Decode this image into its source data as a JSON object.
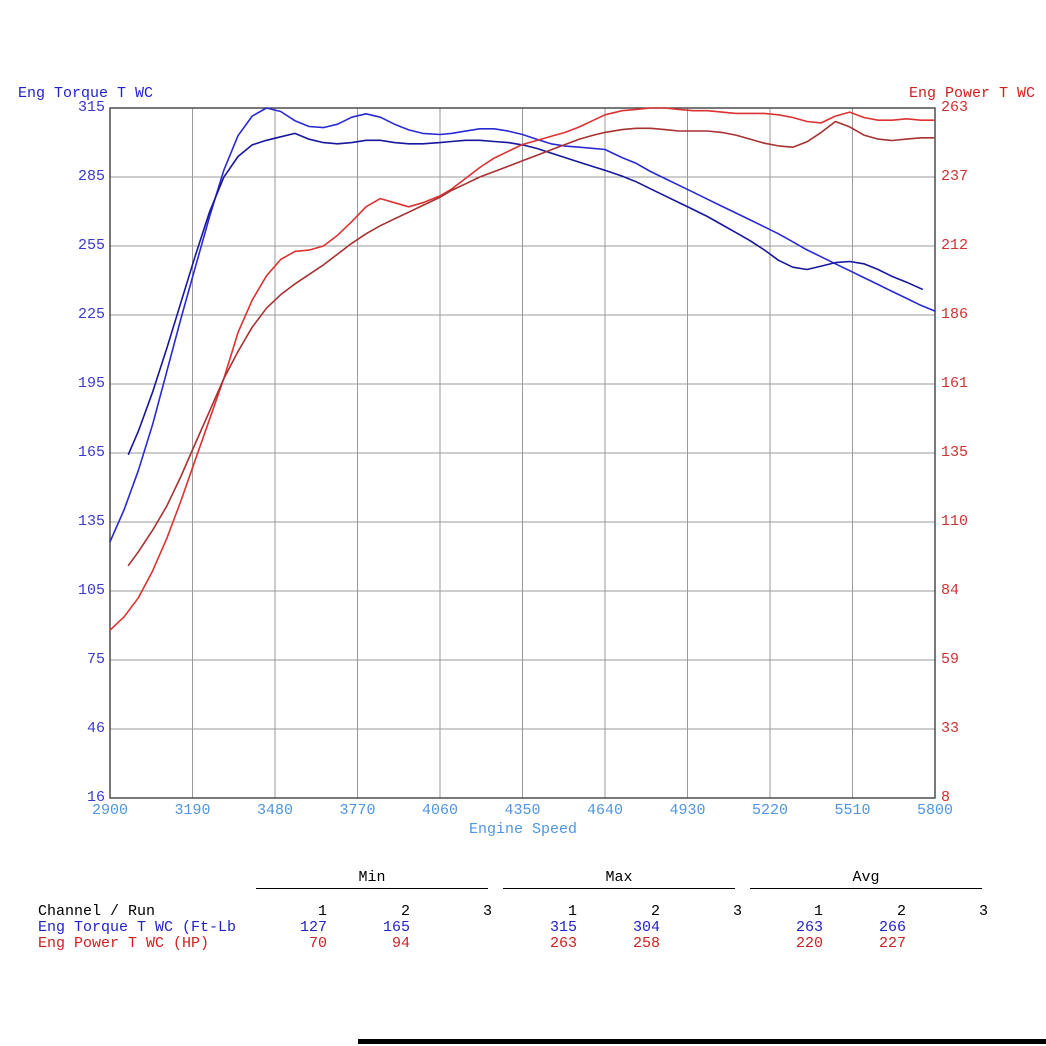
{
  "chart": {
    "torque_title": "Eng Torque T WC",
    "power_title": "Eng Power T WC",
    "x_title": "Engine Speed"
  },
  "colors": {
    "torque_run1": "#2a2ad2",
    "torque_run2": "#17179c",
    "power_run1": "#dc3232",
    "power_run2": "#a63232",
    "left_axis_text": "#3a3acc",
    "right_axis_text": "#cc3333",
    "x_axis_text": "#4f95e0",
    "grid": "#9a9a9a",
    "plot_border": "#404040",
    "table_header_text": "#000000",
    "table_torque_text": "#2222cc",
    "table_power_text": "#cc2222",
    "divider": "#000000",
    "background": "#ffffff"
  },
  "chart_data": {
    "type": "line",
    "title": "",
    "xlabel": "Engine Speed",
    "x_range": [
      2900,
      5800
    ],
    "x_ticks": [
      "2900",
      "3190",
      "3480",
      "3770",
      "4060",
      "4350",
      "4640",
      "4930",
      "5220",
      "5510",
      "5800"
    ],
    "torque_axis": {
      "title": "Eng Torque T WC",
      "range": [
        16,
        315
      ],
      "ticks": [
        "315",
        "285",
        "255",
        "225",
        "195",
        "165",
        "135",
        "105",
        "75",
        "46",
        "16"
      ]
    },
    "power_axis": {
      "title": "Eng Power T WC",
      "range": [
        8,
        263
      ],
      "ticks": [
        "263",
        "237",
        "212",
        "186",
        "161",
        "135",
        "110",
        "84",
        "59",
        "33",
        "8"
      ]
    },
    "grid": true,
    "series": [
      {
        "name": "Eng Torque T WC run 1",
        "axis": "torque",
        "color_key": "torque_run1",
        "points": [
          [
            2900,
            127
          ],
          [
            2950,
            141
          ],
          [
            3000,
            158
          ],
          [
            3050,
            178
          ],
          [
            3100,
            201
          ],
          [
            3150,
            224
          ],
          [
            3200,
            246
          ],
          [
            3250,
            268
          ],
          [
            3300,
            288
          ],
          [
            3350,
            303
          ],
          [
            3400,
            311.5
          ],
          [
            3450,
            315
          ],
          [
            3500,
            313.5
          ],
          [
            3550,
            309.5
          ],
          [
            3600,
            307
          ],
          [
            3650,
            306.5
          ],
          [
            3700,
            308
          ],
          [
            3750,
            311
          ],
          [
            3800,
            312.5
          ],
          [
            3850,
            311
          ],
          [
            3900,
            308
          ],
          [
            3950,
            305.5
          ],
          [
            4000,
            304
          ],
          [
            4060,
            303.5
          ],
          [
            4100,
            304
          ],
          [
            4150,
            305
          ],
          [
            4200,
            306
          ],
          [
            4250,
            306
          ],
          [
            4300,
            305
          ],
          [
            4350,
            303.5
          ],
          [
            4400,
            301.5
          ],
          [
            4450,
            299.5
          ],
          [
            4500,
            298.5
          ],
          [
            4550,
            298
          ],
          [
            4600,
            297.5
          ],
          [
            4640,
            297
          ],
          [
            4700,
            293.5
          ],
          [
            4750,
            291
          ],
          [
            4800,
            287.5
          ],
          [
            4850,
            284.5
          ],
          [
            4900,
            281.5
          ],
          [
            4950,
            278.5
          ],
          [
            5000,
            275.5
          ],
          [
            5050,
            272.5
          ],
          [
            5100,
            269.5
          ],
          [
            5150,
            266.5
          ],
          [
            5200,
            263.5
          ],
          [
            5250,
            260.5
          ],
          [
            5300,
            257
          ],
          [
            5350,
            253.5
          ],
          [
            5400,
            250.5
          ],
          [
            5450,
            247.5
          ],
          [
            5500,
            244.5
          ],
          [
            5550,
            241.5
          ],
          [
            5600,
            238.5
          ],
          [
            5650,
            235.5
          ],
          [
            5700,
            232.5
          ],
          [
            5750,
            229.5
          ],
          [
            5800,
            227
          ]
        ]
      },
      {
        "name": "Eng Torque T WC run 2",
        "axis": "torque",
        "color_key": "torque_run2",
        "points": [
          [
            2965,
            165
          ],
          [
            3000,
            175
          ],
          [
            3050,
            192
          ],
          [
            3100,
            211
          ],
          [
            3150,
            231
          ],
          [
            3200,
            251
          ],
          [
            3250,
            270
          ],
          [
            3300,
            285
          ],
          [
            3350,
            294
          ],
          [
            3400,
            299
          ],
          [
            3450,
            301
          ],
          [
            3500,
            302.5
          ],
          [
            3550,
            304
          ],
          [
            3600,
            301.5
          ],
          [
            3650,
            300
          ],
          [
            3700,
            299.5
          ],
          [
            3750,
            300
          ],
          [
            3800,
            301
          ],
          [
            3850,
            301
          ],
          [
            3900,
            300
          ],
          [
            3950,
            299.5
          ],
          [
            4000,
            299.5
          ],
          [
            4060,
            300
          ],
          [
            4100,
            300.5
          ],
          [
            4150,
            301
          ],
          [
            4200,
            301
          ],
          [
            4250,
            300.5
          ],
          [
            4300,
            300
          ],
          [
            4350,
            299
          ],
          [
            4400,
            297.5
          ],
          [
            4450,
            295.5
          ],
          [
            4500,
            293.5
          ],
          [
            4550,
            291.5
          ],
          [
            4600,
            289.5
          ],
          [
            4640,
            288
          ],
          [
            4700,
            285.5
          ],
          [
            4750,
            283
          ],
          [
            4800,
            280
          ],
          [
            4850,
            277
          ],
          [
            4900,
            274
          ],
          [
            4950,
            271
          ],
          [
            5000,
            268
          ],
          [
            5050,
            264.5
          ],
          [
            5100,
            261
          ],
          [
            5150,
            257.5
          ],
          [
            5200,
            253.5
          ],
          [
            5250,
            249
          ],
          [
            5300,
            246
          ],
          [
            5350,
            245
          ],
          [
            5400,
            246.5
          ],
          [
            5450,
            248
          ],
          [
            5500,
            248.5
          ],
          [
            5550,
            247.5
          ],
          [
            5600,
            245
          ],
          [
            5650,
            242
          ],
          [
            5700,
            239.5
          ],
          [
            5755,
            236.5
          ]
        ]
      },
      {
        "name": "Eng Power T WC run 1",
        "axis": "power",
        "color_key": "power_run1",
        "points": [
          [
            2900,
            70
          ],
          [
            2950,
            75
          ],
          [
            3000,
            82
          ],
          [
            3050,
            92
          ],
          [
            3100,
            104
          ],
          [
            3150,
            118
          ],
          [
            3200,
            133
          ],
          [
            3250,
            148
          ],
          [
            3300,
            163
          ],
          [
            3350,
            180
          ],
          [
            3400,
            192
          ],
          [
            3450,
            201
          ],
          [
            3500,
            207
          ],
          [
            3550,
            210
          ],
          [
            3600,
            210.5
          ],
          [
            3650,
            212
          ],
          [
            3700,
            216
          ],
          [
            3750,
            221
          ],
          [
            3800,
            226.5
          ],
          [
            3850,
            229.5
          ],
          [
            3900,
            228
          ],
          [
            3950,
            226.5
          ],
          [
            4000,
            228
          ],
          [
            4060,
            230.5
          ],
          [
            4100,
            233
          ],
          [
            4150,
            237
          ],
          [
            4200,
            241
          ],
          [
            4250,
            244.5
          ],
          [
            4300,
            247
          ],
          [
            4350,
            249.5
          ],
          [
            4400,
            251
          ],
          [
            4450,
            252.5
          ],
          [
            4500,
            254
          ],
          [
            4550,
            256
          ],
          [
            4600,
            258.5
          ],
          [
            4640,
            260.5
          ],
          [
            4700,
            262
          ],
          [
            4750,
            262.5
          ],
          [
            4800,
            263
          ],
          [
            4850,
            263
          ],
          [
            4900,
            262.5
          ],
          [
            4950,
            262
          ],
          [
            5000,
            262
          ],
          [
            5050,
            261.5
          ],
          [
            5100,
            261
          ],
          [
            5150,
            261
          ],
          [
            5200,
            261
          ],
          [
            5250,
            260.5
          ],
          [
            5300,
            259.5
          ],
          [
            5350,
            258
          ],
          [
            5400,
            257.5
          ],
          [
            5450,
            260
          ],
          [
            5500,
            261.5
          ],
          [
            5550,
            259.5
          ],
          [
            5600,
            258.5
          ],
          [
            5650,
            258.5
          ],
          [
            5700,
            259
          ],
          [
            5750,
            258.5
          ],
          [
            5795,
            258.5
          ]
        ]
      },
      {
        "name": "Eng Power T WC run 2",
        "axis": "power",
        "color_key": "power_run2",
        "points": [
          [
            2965,
            94
          ],
          [
            3000,
            99
          ],
          [
            3050,
            107
          ],
          [
            3100,
            116
          ],
          [
            3150,
            127
          ],
          [
            3200,
            139
          ],
          [
            3250,
            151
          ],
          [
            3300,
            163
          ],
          [
            3350,
            173
          ],
          [
            3400,
            182
          ],
          [
            3450,
            189
          ],
          [
            3500,
            194
          ],
          [
            3550,
            198
          ],
          [
            3600,
            201.5
          ],
          [
            3650,
            205
          ],
          [
            3700,
            209
          ],
          [
            3750,
            213
          ],
          [
            3800,
            216.5
          ],
          [
            3850,
            219.5
          ],
          [
            3900,
            222
          ],
          [
            3950,
            224.5
          ],
          [
            4000,
            227
          ],
          [
            4060,
            230
          ],
          [
            4100,
            232.5
          ],
          [
            4150,
            235
          ],
          [
            4200,
            237.5
          ],
          [
            4250,
            239.5
          ],
          [
            4300,
            241.5
          ],
          [
            4350,
            243.5
          ],
          [
            4400,
            245.5
          ],
          [
            4450,
            247.5
          ],
          [
            4500,
            249.5
          ],
          [
            4550,
            251.5
          ],
          [
            4600,
            253
          ],
          [
            4640,
            254
          ],
          [
            4700,
            255
          ],
          [
            4750,
            255.5
          ],
          [
            4800,
            255.5
          ],
          [
            4850,
            255
          ],
          [
            4900,
            254.5
          ],
          [
            4950,
            254.5
          ],
          [
            5000,
            254.5
          ],
          [
            5050,
            254
          ],
          [
            5100,
            253
          ],
          [
            5150,
            251.5
          ],
          [
            5200,
            250
          ],
          [
            5250,
            249
          ],
          [
            5300,
            248.5
          ],
          [
            5350,
            250.5
          ],
          [
            5400,
            254
          ],
          [
            5450,
            258
          ],
          [
            5500,
            256
          ],
          [
            5550,
            253
          ],
          [
            5600,
            251.5
          ],
          [
            5650,
            251
          ],
          [
            5700,
            251.5
          ],
          [
            5750,
            252
          ],
          [
            5795,
            252
          ]
        ]
      }
    ]
  },
  "stats_table": {
    "corner_label": "Channel / Run",
    "group_headers": [
      "Min",
      "Max",
      "Avg"
    ],
    "run_numbers": [
      "1",
      "2",
      "3"
    ],
    "rows": [
      {
        "label": "Eng Torque T WC (Ft-Lb",
        "color_key": "table_torque_text",
        "values": [
          [
            "127",
            "165",
            ""
          ],
          [
            "315",
            "304",
            ""
          ],
          [
            "263",
            "266",
            ""
          ]
        ]
      },
      {
        "label": "Eng Power T WC (HP)",
        "color_key": "table_power_text",
        "values": [
          [
            "70",
            "94",
            ""
          ],
          [
            "263",
            "258",
            ""
          ],
          [
            "220",
            "227",
            ""
          ]
        ]
      }
    ]
  }
}
